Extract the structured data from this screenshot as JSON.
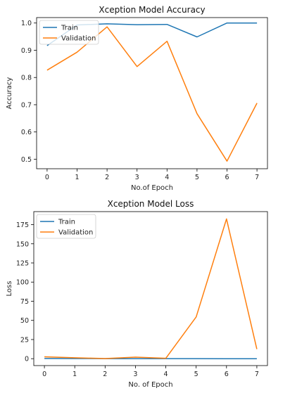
{
  "chart_data": [
    {
      "type": "line",
      "title": "Xception Model Accuracy",
      "xlabel": "No.of Epoch",
      "ylabel": "Accuracy",
      "x": [
        0,
        1,
        2,
        3,
        4,
        5,
        6,
        7
      ],
      "xlim": [
        -0.35,
        7.35
      ],
      "ylim": [
        0.465,
        1.02
      ],
      "xticks": [
        "0",
        "1",
        "2",
        "3",
        "4",
        "5",
        "6",
        "7"
      ],
      "yticks": [
        "0.5",
        "0.6",
        "0.7",
        "0.8",
        "0.9",
        "1.0"
      ],
      "ytick_values": [
        0.5,
        0.6,
        0.7,
        0.8,
        0.9,
        1.0
      ],
      "legend_position": "top-left",
      "grid": false,
      "series": [
        {
          "name": "Train",
          "color": "#1f77b4",
          "values": [
            0.917,
            0.993,
            0.997,
            0.994,
            0.995,
            0.949,
            1.0,
            1.0
          ]
        },
        {
          "name": "Validation",
          "color": "#ff7f0e",
          "values": [
            0.827,
            0.893,
            0.986,
            0.84,
            0.933,
            0.667,
            0.493,
            0.706
          ]
        }
      ]
    },
    {
      "type": "line",
      "title": "Xception Model Loss",
      "xlabel": "No. of Epoch",
      "ylabel": "Loss",
      "x": [
        0,
        1,
        2,
        3,
        4,
        5,
        6,
        7
      ],
      "xlim": [
        -0.35,
        7.35
      ],
      "ylim": [
        -9,
        192
      ],
      "xticks": [
        "0",
        "1",
        "2",
        "3",
        "4",
        "5",
        "6",
        "7"
      ],
      "yticks": [
        "0",
        "25",
        "50",
        "75",
        "100",
        "125",
        "150",
        "175"
      ],
      "ytick_values": [
        0,
        25,
        50,
        75,
        100,
        125,
        150,
        175
      ],
      "legend_position": "top-left",
      "grid": false,
      "series": [
        {
          "name": "Train",
          "color": "#1f77b4",
          "values": [
            0.3,
            0.2,
            0.1,
            0.1,
            0.1,
            0.1,
            0.0,
            0.0
          ]
        },
        {
          "name": "Validation",
          "color": "#ff7f0e",
          "values": [
            2.5,
            1.2,
            0.2,
            2.0,
            0.5,
            54.5,
            182.5,
            12.5
          ]
        }
      ]
    }
  ]
}
